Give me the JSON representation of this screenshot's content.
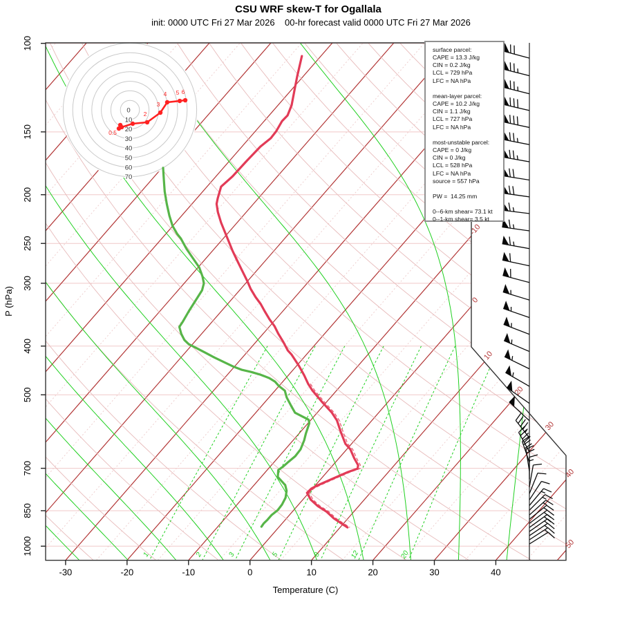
{
  "title": "CSU WRF skew-T for Ogallala",
  "subtitle": "init: 0000 UTC Fri 27 Mar 2026    00-hr forecast valid 0000 UTC Fri 27 Mar 2026",
  "axes": {
    "pressure_label": "P (hPa)",
    "pressure_ticks": [
      100,
      150,
      200,
      250,
      300,
      400,
      500,
      700,
      850,
      1000
    ],
    "temperature_label": "Temperature (C)",
    "temperature_ticks": [
      -30,
      -20,
      -10,
      0,
      10,
      20,
      30,
      40
    ]
  },
  "isotherm_edge_labels": [
    -10,
    0,
    10,
    20,
    30,
    40,
    50
  ],
  "mixing_ratio_labels": [
    1,
    2,
    3,
    5,
    8,
    12,
    20
  ],
  "parcel_info_lines": [
    "surface parcel:",
    "CAPE = 13.3 J/kg",
    "CIN = 0.2 J/kg",
    "LCL = 729 hPa",
    "LFC = NA hPa",
    "",
    "mean-layer parcel:",
    "CAPE = 10.2 J/kg",
    "CIN = 1.1 J/kg",
    "LCL = 727 hPa",
    "LFC = NA hPa",
    "",
    "most-unstable parcel:",
    "CAPE = 0 J/kg",
    "CIN = 0 J/kg",
    "LCL = 528 hPa",
    "LFC = NA hPa",
    "source = 557 hPa",
    "",
    "PW =  14.25 mm",
    "",
    "0--6-km shear= 73.1 kt",
    "0--1-km shear= 3.5 kt"
  ],
  "hodograph": {
    "ring_labels": [
      0,
      10,
      20,
      30,
      40,
      50,
      60,
      70
    ],
    "ring_interval_kt": 10,
    "trace_point_labels": [
      "0.5",
      null,
      null,
      null,
      "2",
      "3",
      "4",
      "5",
      "6"
    ]
  },
  "colors": {
    "temperature": "#e23b57",
    "dewpoint": "#57b548",
    "virtual_temperature": "#e85a70",
    "isotherm_major": "#b23535",
    "isotherm_minor": "#edcaca",
    "dry_adiabat": "#e7baba",
    "pressure_line": "#f0c8c8",
    "moist_adiabat": "#1fd01f",
    "mixing_ratio": "#1fd01f",
    "frame": "#333333",
    "barb": "#0a0a0a",
    "hodograph_ring": "#c9c9c9",
    "hodograph_trace": "#ff2222"
  },
  "chart_data": {
    "type": "line",
    "title": "CSU WRF skew-T for Ogallala",
    "xlabel": "Temperature (C)",
    "ylabel": "P (hPa)",
    "y_scale": "log-pressure",
    "y_range_hPa": [
      100,
      1050
    ],
    "x_range_C": [
      -35,
      45
    ],
    "series": [
      {
        "name": "temperature_C_vs_hPa",
        "points": [
          [
            106,
            -63.1
          ],
          [
            116.2,
            -61.0
          ],
          [
            123.7,
            -59.5
          ],
          [
            132.7,
            -57.8
          ],
          [
            139.1,
            -57.0
          ],
          [
            142.7,
            -57.1
          ],
          [
            149.6,
            -56.6
          ],
          [
            154.4,
            -56.5
          ],
          [
            160.4,
            -57.0
          ],
          [
            171.4,
            -57.2
          ],
          [
            183.8,
            -57.3
          ],
          [
            192.8,
            -57.7
          ],
          [
            203.4,
            -56.6
          ],
          [
            208.6,
            -56.0
          ],
          [
            216.7,
            -54.6
          ],
          [
            227.3,
            -52.6
          ],
          [
            239.1,
            -50.3
          ],
          [
            249.9,
            -48.3
          ],
          [
            258.8,
            -46.7
          ],
          [
            270.4,
            -44.6
          ],
          [
            281.8,
            -42.6
          ],
          [
            297.3,
            -40.0
          ],
          [
            307.8,
            -38.4
          ],
          [
            319.8,
            -36.4
          ],
          [
            330.0,
            -34.6
          ],
          [
            340.6,
            -33.0
          ],
          [
            353.9,
            -31.0
          ],
          [
            365.3,
            -29.2
          ],
          [
            378.3,
            -27.5
          ],
          [
            392.9,
            -25.5
          ],
          [
            408.2,
            -23.6
          ],
          [
            416.0,
            -22.4
          ],
          [
            425.3,
            -21.2
          ],
          [
            438.9,
            -19.5
          ],
          [
            457.5,
            -17.4
          ],
          [
            475.2,
            -15.6
          ],
          [
            490.5,
            -13.9
          ],
          [
            517.7,
            -10.6
          ],
          [
            542.8,
            -7.6
          ],
          [
            562.1,
            -5.7
          ],
          [
            593.1,
            -3.4
          ],
          [
            625.8,
            -1.0
          ],
          [
            641.9,
            0.6
          ],
          [
            668.7,
            2.5
          ],
          [
            690.1,
            4.1
          ],
          [
            701.1,
            4.5
          ],
          [
            712.3,
            3.4
          ],
          [
            735.2,
            1.8
          ],
          [
            756.5,
            0.4
          ],
          [
            768.5,
            -0.2
          ],
          [
            783.2,
            -0.3
          ],
          [
            808.4,
            1.3
          ],
          [
            831.8,
            3.3
          ],
          [
            853.1,
            5.5
          ],
          [
            880.5,
            7.7
          ],
          [
            905.9,
            10.1
          ],
          [
            917.4,
            11.2
          ]
        ]
      },
      {
        "name": "dewpoint_C_vs_hPa",
        "points": [
          [
            176.9,
            -69.8
          ],
          [
            186.8,
            -68.0
          ],
          [
            197.1,
            -66.2
          ],
          [
            208.6,
            -64.1
          ],
          [
            220.2,
            -62.0
          ],
          [
            230.9,
            -60.0
          ],
          [
            239.1,
            -58.2
          ],
          [
            244.4,
            -56.9
          ],
          [
            256.3,
            -54.5
          ],
          [
            268.7,
            -51.9
          ],
          [
            279.1,
            -49.8
          ],
          [
            290.8,
            -48.0
          ],
          [
            300.1,
            -46.8
          ],
          [
            309.8,
            -46.1
          ],
          [
            324.9,
            -45.7
          ],
          [
            340.6,
            -45.3
          ],
          [
            357.3,
            -44.8
          ],
          [
            366.4,
            -44.6
          ],
          [
            378.3,
            -43.3
          ],
          [
            389.2,
            -41.9
          ],
          [
            396.7,
            -40.6
          ],
          [
            403.0,
            -39.0
          ],
          [
            412.0,
            -36.8
          ],
          [
            421.3,
            -34.6
          ],
          [
            429.4,
            -32.6
          ],
          [
            438.9,
            -30.3
          ],
          [
            446.0,
            -28.3
          ],
          [
            450.2,
            -26.6
          ],
          [
            456.0,
            -24.6
          ],
          [
            463.2,
            -22.7
          ],
          [
            470.6,
            -21.3
          ],
          [
            479.7,
            -20.1
          ],
          [
            490.5,
            -18.4
          ],
          [
            506.4,
            -17.1
          ],
          [
            526.0,
            -15.2
          ],
          [
            542.8,
            -13.6
          ],
          [
            560.4,
            -10.4
          ],
          [
            569.3,
            -9.8
          ],
          [
            596.8,
            -8.9
          ],
          [
            616.0,
            -8.2
          ],
          [
            641.9,
            -7.5
          ],
          [
            662.4,
            -7.4
          ],
          [
            679.3,
            -7.7
          ],
          [
            694.5,
            -7.9
          ],
          [
            705.6,
            -8.2
          ],
          [
            728.3,
            -7.3
          ],
          [
            744.6,
            -5.9
          ],
          [
            756.5,
            -4.9
          ],
          [
            775.9,
            -3.9
          ],
          [
            800.7,
            -3.1
          ],
          [
            826.5,
            -2.7
          ],
          [
            847.8,
            -2.6
          ],
          [
            866.8,
            -2.9
          ],
          [
            886.1,
            -2.9
          ],
          [
            900.2,
            -3.0
          ],
          [
            914.5,
            -2.9
          ]
        ]
      }
    ],
    "wind_barbs_p_spd_dir": [
      [
        107,
        70,
        285
      ],
      [
        116,
        75,
        284
      ],
      [
        126,
        75,
        284
      ],
      [
        136,
        80,
        283
      ],
      [
        147,
        80,
        282
      ],
      [
        159,
        75,
        281
      ],
      [
        172,
        75,
        280
      ],
      [
        187,
        70,
        279
      ],
      [
        202,
        70,
        278
      ],
      [
        218,
        65,
        277
      ],
      [
        236,
        65,
        278
      ],
      [
        256,
        65,
        280
      ],
      [
        277,
        60,
        282
      ],
      [
        299,
        60,
        285
      ],
      [
        324,
        55,
        287
      ],
      [
        351,
        55,
        289
      ],
      [
        379,
        55,
        291
      ],
      [
        410,
        55,
        293
      ],
      [
        444,
        55,
        296
      ],
      [
        481,
        55,
        300
      ],
      [
        520,
        50,
        305
      ],
      [
        563,
        50,
        313
      ],
      [
        609,
        45,
        322
      ],
      [
        649,
        40,
        331
      ],
      [
        681,
        30,
        341
      ],
      [
        709,
        20,
        351
      ],
      [
        736,
        15,
        0
      ],
      [
        762,
        12,
        10
      ],
      [
        786,
        12,
        22
      ],
      [
        809,
        12,
        33
      ],
      [
        830,
        15,
        40
      ],
      [
        848,
        15,
        45
      ],
      [
        867,
        18,
        48
      ],
      [
        884,
        18,
        51
      ],
      [
        901,
        20,
        53
      ],
      [
        918,
        20,
        54
      ],
      [
        935,
        18,
        55
      ],
      [
        953,
        15,
        56
      ],
      [
        971,
        15,
        57
      ],
      [
        990,
        10,
        58
      ]
    ],
    "hodograph_trace_u_v_kt": [
      [
        -11.6,
        -19.6
      ],
      [
        -10.1,
        -15.9
      ],
      [
        -8.7,
        -18.1
      ],
      [
        2.9,
        -14.5
      ],
      [
        18.1,
        -13.0
      ],
      [
        31.9,
        -2.9
      ],
      [
        39.1,
        8.0
      ],
      [
        52.2,
        9.4
      ],
      [
        58.0,
        10.1
      ]
    ],
    "background": {
      "isotherms_C_step": 10,
      "minor_isotherms_C_step": 5,
      "dry_adiabats_theta_step": 10,
      "moist_adiabats_thetaw": [
        -40,
        -32,
        -24,
        -16,
        -8,
        0,
        8,
        16,
        24,
        32,
        40
      ],
      "mixing_ratio_g_kg": [
        1,
        2,
        3,
        5,
        8,
        12,
        20
      ]
    }
  }
}
